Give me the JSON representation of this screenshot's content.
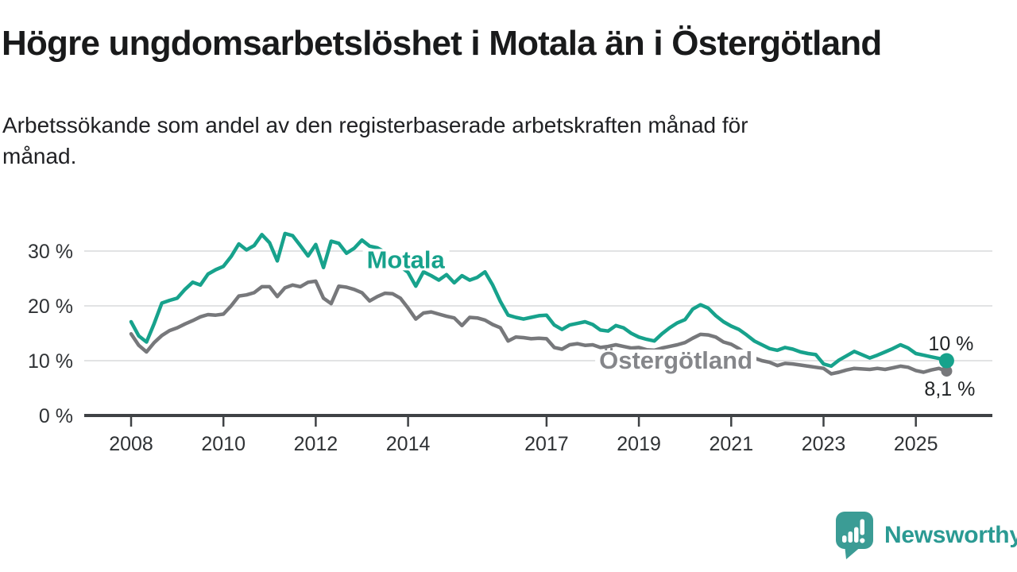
{
  "title": "Högre ungdomsarbetslöshet i Motala än i Östergötland",
  "subtitle_line1": "Arbetssökande som andel av den registerbaserade arbetskraften månad för",
  "subtitle_line2": "månad.",
  "branding": {
    "logo_text": "Newsworthy"
  },
  "colors": {
    "motala": "#17A28C",
    "ostergotland": "#77787B",
    "label_gray": "#85868A",
    "grid": "#D9DADB",
    "axis": "#3F4245",
    "tick_text": "#2F3235",
    "value_text": "#1F2224",
    "logo": "#3B9C95",
    "logo_text": "#2B9A93",
    "background": "#FFFFFF"
  },
  "chart_data": {
    "type": "line",
    "title": "Högre ungdomsarbetslöshet i Motala än i Östergötland",
    "unit": "%",
    "grid": "horizontal",
    "legend_position": "inline-labels",
    "x_start_year": 2008,
    "x_step_months": 2,
    "x_ticks": [
      2008,
      2010,
      2012,
      2014,
      2017,
      2019,
      2021,
      2023,
      2025
    ],
    "y_ticks": [
      0,
      10,
      20,
      30
    ],
    "y_tick_labels": [
      "0 %",
      "10 %",
      "20 %",
      "30 %"
    ],
    "ylim": [
      0,
      34
    ],
    "series": [
      {
        "name": "Motala",
        "color_key": "motala",
        "end_label": "10 %",
        "latest_value": 10,
        "label": {
          "text": "Motala",
          "year": 2013.95,
          "value": 28.5
        },
        "values": [
          17.1,
          14.5,
          13.4,
          16.8,
          20.5,
          21.0,
          21.4,
          23.0,
          24.3,
          23.8,
          25.8,
          26.6,
          27.2,
          29.0,
          31.3,
          30.2,
          31.0,
          33.0,
          31.5,
          28.2,
          33.2,
          32.8,
          31.0,
          29.1,
          31.2,
          27.0,
          31.8,
          31.4,
          29.6,
          30.5,
          32.0,
          30.9,
          30.6,
          29.8,
          28.4,
          27.2,
          26.1,
          23.6,
          26.2,
          25.5,
          24.7,
          25.7,
          24.2,
          25.5,
          24.7,
          25.2,
          26.2,
          23.8,
          20.8,
          18.3,
          17.9,
          17.6,
          17.9,
          18.2,
          18.3,
          16.5,
          15.7,
          16.5,
          16.8,
          17.1,
          16.6,
          15.6,
          15.4,
          16.4,
          16.0,
          15.0,
          14.3,
          13.9,
          13.6,
          14.9,
          16.0,
          16.9,
          17.5,
          19.4,
          20.2,
          19.6,
          18.2,
          17.1,
          16.3,
          15.7,
          14.7,
          13.6,
          12.9,
          12.2,
          11.9,
          12.4,
          12.1,
          11.6,
          11.3,
          11.1,
          9.4,
          9.0,
          10.1,
          10.9,
          11.7,
          11.1,
          10.5,
          11.0,
          11.6,
          12.2,
          12.9,
          12.3,
          11.3,
          11.0,
          10.7,
          10.4,
          10.0
        ]
      },
      {
        "name": "Östergötland",
        "color_key": "ostergotland",
        "label_color_key": "label_gray",
        "end_label": "8,1 %",
        "latest_value": 8.1,
        "label": {
          "text": "Östergötland",
          "year": 2019.8,
          "value": 10.15
        },
        "values": [
          14.9,
          12.8,
          11.6,
          13.3,
          14.6,
          15.5,
          16.0,
          16.7,
          17.3,
          18.0,
          18.4,
          18.3,
          18.5,
          20.0,
          21.8,
          22.0,
          22.4,
          23.5,
          23.5,
          21.7,
          23.3,
          23.8,
          23.5,
          24.3,
          24.5,
          21.4,
          20.4,
          23.6,
          23.4,
          23.0,
          22.4,
          20.9,
          21.7,
          22.3,
          22.2,
          21.4,
          19.6,
          17.6,
          18.7,
          18.9,
          18.5,
          18.1,
          17.8,
          16.4,
          17.9,
          17.8,
          17.4,
          16.6,
          16.0,
          13.6,
          14.3,
          14.2,
          14.0,
          14.1,
          14.0,
          12.4,
          12.1,
          12.9,
          13.1,
          12.8,
          12.9,
          12.4,
          12.6,
          12.9,
          12.6,
          12.3,
          12.4,
          12.0,
          11.9,
          12.3,
          12.6,
          12.9,
          13.3,
          14.1,
          14.8,
          14.7,
          14.3,
          13.4,
          13.0,
          12.2,
          11.2,
          10.5,
          10.0,
          9.7,
          9.1,
          9.5,
          9.4,
          9.2,
          9.0,
          8.8,
          8.6,
          7.6,
          7.9,
          8.3,
          8.6,
          8.5,
          8.4,
          8.6,
          8.4,
          8.7,
          9.0,
          8.8,
          8.2,
          7.9,
          8.3,
          8.6,
          8.1
        ]
      }
    ]
  }
}
